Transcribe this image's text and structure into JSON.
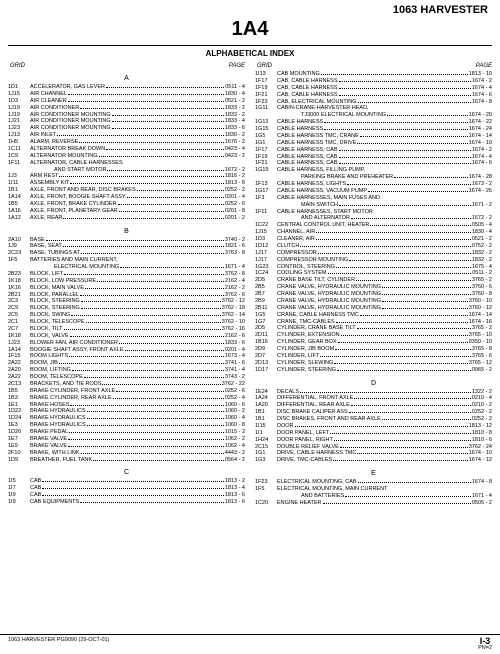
{
  "header": {
    "product": "1063 HARVESTER",
    "section": "1A4",
    "indexTitle": "ALPHABETICAL INDEX"
  },
  "colhead": {
    "grid": "GRID",
    "page": "PAGE"
  },
  "footer": {
    "left": "1063 HARVESTER    PG9090       (29-OCT-01)",
    "rightBig": "I-3",
    "rightSmall": "PN=2"
  },
  "left": [
    {
      "type": "letter",
      "label": "A"
    },
    {
      "type": "row",
      "grid": "1D1",
      "desc": "ACCELERATOR, GAS LEVER",
      "page": "0511 - 4"
    },
    {
      "type": "row",
      "grid": "1J15",
      "desc": "AIR CHANNEL",
      "page": "1830 - 4"
    },
    {
      "type": "row",
      "grid": "1D3",
      "desc": "AIR CLEANER",
      "page": "0521 - 2"
    },
    {
      "type": "row",
      "grid": "1J19",
      "desc": "AIR CONDITIONER",
      "page": "1833 - 2"
    },
    {
      "type": "row",
      "grid": "1J19",
      "desc": "AIR CONDITIONER MOUNTING",
      "page": "1833 - 2"
    },
    {
      "type": "row",
      "grid": "1J21",
      "desc": "AIR CONDITIONER MOUNTING",
      "page": "1833 - 4"
    },
    {
      "type": "row",
      "grid": "1J23",
      "desc": "AIR CONDITIONER MOUNTING",
      "page": "1833 - 6"
    },
    {
      "type": "row",
      "grid": "1J13",
      "desc": "AIR INLET",
      "page": "1830 - 2"
    },
    {
      "type": "row",
      "grid": "1H5",
      "desc": "ALARM, REVERSE",
      "page": "1676 - 2"
    },
    {
      "type": "row",
      "grid": "1C11",
      "desc": "ALTERNATOR BREAK DOWN",
      "page": "0423 - 4"
    },
    {
      "type": "row",
      "grid": "1C9",
      "desc": "ALTERNATOR MOUNTING",
      "page": "0423 - 2"
    },
    {
      "type": "row",
      "grid": "1F11",
      "desc": "ALTERNATOR, CABLE HARNESSES",
      "page": ""
    },
    {
      "type": "cont",
      "desc": "AND START MOTOR",
      "page": "1672 - 2"
    },
    {
      "type": "row",
      "grid": "1J3",
      "desc": "ARM REST",
      "page": "1816 - 2"
    },
    {
      "type": "row",
      "grid": "1I11",
      "desc": "ASSEMBLY KIT",
      "page": "1813 - 8"
    },
    {
      "type": "row",
      "grid": "1B1",
      "desc": "AXLE, FRONT AND REAR, DISC BRAKES",
      "page": "0252 - 2"
    },
    {
      "type": "row",
      "grid": "1A14",
      "desc": "AXLE, FRONT, BOOGIE SHAFT ASSY.",
      "page": "0201 - 4"
    },
    {
      "type": "row",
      "grid": "1B5",
      "desc": "AXLE, FRONT, BRAKE CYLINDER",
      "page": "0252 - 6"
    },
    {
      "type": "row",
      "grid": "1A16",
      "desc": "AXLE, FRONT, PLANETARY GEAR",
      "page": "0201 - 8"
    },
    {
      "type": "row",
      "grid": "1A12",
      "desc": "AXLE, REAR",
      "page": "0201 - 2"
    },
    {
      "type": "letter",
      "label": "B"
    },
    {
      "type": "row",
      "grid": "2A10",
      "desc": "BASE",
      "page": "3740 - 2"
    },
    {
      "type": "row",
      "grid": "1J9",
      "desc": "BASE, SEAT",
      "page": "1821 - 6"
    },
    {
      "type": "row",
      "grid": "2C23",
      "desc": "BASE, TUBINGS AT",
      "page": "3763 - 8"
    },
    {
      "type": "row",
      "grid": "1F5",
      "desc": "BATTERIES AND MAIN CURRENT,",
      "page": ""
    },
    {
      "type": "cont",
      "desc": "ELECTRICAL MOUNTING",
      "page": "1671 - 4"
    },
    {
      "type": "row",
      "grid": "2B23",
      "desc": "BLOCK, LIFT",
      "page": "3762 - 8"
    },
    {
      "type": "row",
      "grid": "1K18",
      "desc": "BLOCK, LOW PRESSURE",
      "page": "2162 - 4"
    },
    {
      "type": "row",
      "grid": "1K16",
      "desc": "BLOCK, MAIN VALVE",
      "page": "2162 - 2"
    },
    {
      "type": "row",
      "grid": "2B21",
      "desc": "BLOCK, PARALLEL",
      "page": "3762 - 6"
    },
    {
      "type": "row",
      "grid": "2C3",
      "desc": "BLOCK, STEERING",
      "page": "3762 - 12"
    },
    {
      "type": "row",
      "grid": "2C9",
      "desc": "BLOCK, STEERING",
      "page": "3762 - 18"
    },
    {
      "type": "row",
      "grid": "2C5",
      "desc": "BLOCK, SWING",
      "page": "3762 - 14"
    },
    {
      "type": "row",
      "grid": "2C1",
      "desc": "BLOCK, TELESCOPE",
      "page": "3762 - 10"
    },
    {
      "type": "row",
      "grid": "2C7",
      "desc": "BLOCK, TILT",
      "page": "3762 - 16"
    },
    {
      "type": "row",
      "grid": "1K18",
      "desc": "BLOCK, VALVE",
      "page": "2162 - 6"
    },
    {
      "type": "row",
      "grid": "1J23",
      "desc": "BLOWER FAN, AIR CONDITIONER",
      "page": "1833 - 6"
    },
    {
      "type": "row",
      "grid": "1A14",
      "desc": "BOOGIE SHAFT ASSY, FRONT AXLE",
      "page": "0201 - 4"
    },
    {
      "type": "row",
      "grid": "1F15",
      "desc": "BOOM LIGHTS",
      "page": "1673 - 4"
    },
    {
      "type": "row",
      "grid": "2A22",
      "desc": "BOOM, JIB",
      "page": "3741 - 6"
    },
    {
      "type": "row",
      "grid": "2A20",
      "desc": "BOOM, LIFTING",
      "page": "3741 - 4"
    },
    {
      "type": "row",
      "grid": "2A22",
      "desc": "BOOM, TELESCOPE",
      "page": "3743 - 2"
    },
    {
      "type": "row",
      "grid": "2C13",
      "desc": "BRACKETS, AND TIE RODS",
      "page": "3762 - 22"
    },
    {
      "type": "row",
      "grid": "1B5",
      "desc": "BRAKE CYLINDER, FRONT AXLE",
      "page": "0252 - 6"
    },
    {
      "type": "row",
      "grid": "1B3",
      "desc": "BRAKE CYLINDER, REAR AXLE",
      "page": "0252 - 4"
    },
    {
      "type": "row",
      "grid": "1E1",
      "desc": "BRAKE HOSES",
      "page": "1060 - 6"
    },
    {
      "type": "row",
      "grid": "1D22",
      "desc": "BRAKE HYDRAULICS",
      "page": "1060 - 2"
    },
    {
      "type": "row",
      "grid": "1D24",
      "desc": "BRAKE HYDRAULICS",
      "page": "1060 - 4"
    },
    {
      "type": "row",
      "grid": "1E3",
      "desc": "BRAKE HYDRAULICS",
      "page": "1060 - 8"
    },
    {
      "type": "row",
      "grid": "1D20",
      "desc": "BRAKE PEDAL",
      "page": "1015 - 2"
    },
    {
      "type": "row",
      "grid": "1E7",
      "desc": "BRAKE VALVE",
      "page": "1062 - 2"
    },
    {
      "type": "row",
      "grid": "1E9",
      "desc": "BRAKE VALVE",
      "page": "1062 - 4"
    },
    {
      "type": "row",
      "grid": "2F10",
      "desc": "BRAKE, WITH LINK",
      "page": "4443 - 2"
    },
    {
      "type": "row",
      "grid": "1D9",
      "desc": "BREATHER, FUEL TANK",
      "page": "0564 - 2"
    },
    {
      "type": "letter",
      "label": "C"
    },
    {
      "type": "row",
      "grid": "1I5",
      "desc": "CAB",
      "page": "1813 - 2"
    },
    {
      "type": "row",
      "grid": "1I7",
      "desc": "CAB",
      "page": "1813 - 4"
    },
    {
      "type": "row",
      "grid": "1I9",
      "desc": "CAB",
      "page": "1813 - 6"
    },
    {
      "type": "row",
      "grid": "1I9",
      "desc": "CAB EQUIPMENTS",
      "page": "1813 - 6"
    }
  ],
  "right": [
    {
      "type": "row",
      "grid": "1I13",
      "desc": "CAB MOUNTING",
      "page": "1813 - 10"
    },
    {
      "type": "row",
      "grid": "1F17",
      "desc": "CAB, CABLE HARNESS",
      "page": "1674 - 2"
    },
    {
      "type": "row",
      "grid": "1F19",
      "desc": "CAB, CABLE HARNESS",
      "page": "1674 - 4"
    },
    {
      "type": "row",
      "grid": "1F21",
      "desc": "CAB, CABLE HARNESS",
      "page": "1674 - 6"
    },
    {
      "type": "row",
      "grid": "1F23",
      "desc": "CAB, ELECTRICAL MOUNTING",
      "page": "1674 - 8"
    },
    {
      "type": "row",
      "grid": "1G11",
      "desc": "CABIN-CRANE-HARVESTER HEAD,",
      "page": ""
    },
    {
      "type": "cont",
      "desc": "TJ3000 ELECTRICAL MOUNTING",
      "page": "1674 - 20"
    },
    {
      "type": "row",
      "grid": "1G13",
      "desc": "CABLE HARNESS",
      "page": "1674 - 22"
    },
    {
      "type": "row",
      "grid": "1G15",
      "desc": "CABLE HARNESS",
      "page": "1674 - 24"
    },
    {
      "type": "row",
      "grid": "1G5",
      "desc": "CABLE HARNESS TMC, CRANE",
      "page": "1674 - 14"
    },
    {
      "type": "row",
      "grid": "1G1",
      "desc": "CABLE HARNESS TMC, DRIVE",
      "page": "1674 - 10"
    },
    {
      "type": "row",
      "grid": "1F17",
      "desc": "CABLE HARNESS, CAB",
      "page": "1674 - 2"
    },
    {
      "type": "row",
      "grid": "1F19",
      "desc": "CABLE HARNESS, CAB",
      "page": "1674 - 4"
    },
    {
      "type": "row",
      "grid": "1F21",
      "desc": "CABLE HARNESS, CAB",
      "page": "1674 - 6"
    },
    {
      "type": "row",
      "grid": "1G19",
      "desc": "CABLE HARNESS, FILLING PUMP,",
      "page": ""
    },
    {
      "type": "cont",
      "desc": "PARKING BRAKE AND PREHEATER",
      "page": "1674 - 28"
    },
    {
      "type": "row",
      "grid": "1F13",
      "desc": "CABLE HARNESS, LIGHTS",
      "page": "1673 - 2"
    },
    {
      "type": "row",
      "grid": "1G17",
      "desc": "CABLE HARNESS, VACUUM PUMP",
      "page": "1674 - 26"
    },
    {
      "type": "row",
      "grid": "1F3",
      "desc": "CABLE HARNESSES, MAIN FUSES AND",
      "page": ""
    },
    {
      "type": "cont",
      "desc": "MAIN SWITCH",
      "page": "1671 - 2"
    },
    {
      "type": "row",
      "grid": "1F11",
      "desc": "CABLE HARNESSES, START MOTOR",
      "page": ""
    },
    {
      "type": "cont",
      "desc": "AND ALTERNATOR",
      "page": "1672 - 2"
    },
    {
      "type": "row",
      "grid": "1C22",
      "desc": "CENTRAL CONTROL UNIT, HEATER",
      "page": "0505 - 4"
    },
    {
      "type": "row",
      "grid": "1J15",
      "desc": "CHANNEL, AIR",
      "page": "1830 - 4"
    },
    {
      "type": "row",
      "grid": "1D3",
      "desc": "CLEANER, AIR",
      "page": "0521 - 2"
    },
    {
      "type": "row",
      "grid": "1D12",
      "desc": "CLUTCH",
      "page": "0752 - 2"
    },
    {
      "type": "row",
      "grid": "1J17",
      "desc": "COMPRESSOR",
      "page": "1832 - 2"
    },
    {
      "type": "row",
      "grid": "1J17",
      "desc": "COMPRESSOR MOUNTING",
      "page": "1832 - 2"
    },
    {
      "type": "row",
      "grid": "1G23",
      "desc": "CONTROL, STEERING",
      "page": "1675 - 4"
    },
    {
      "type": "row",
      "grid": "1C24",
      "desc": "COOLING SYSTEM",
      "page": "0511 - 2"
    },
    {
      "type": "row",
      "grid": "2D5",
      "desc": "CRANE BASE TILT, CYLINDER",
      "page": "3765 - 2"
    },
    {
      "type": "row",
      "grid": "2B5",
      "desc": "CRANE VALVE, HYDRAULIC MOUNTING",
      "page": "3760 - 6"
    },
    {
      "type": "row",
      "grid": "2B7",
      "desc": "CRANE VALVE, HYDRAULIC MOUNTING",
      "page": "3760 - 8"
    },
    {
      "type": "row",
      "grid": "2B9",
      "desc": "CRANE VALVE, HYDRAULIC MOUNTING",
      "page": "3760 - 10"
    },
    {
      "type": "row",
      "grid": "2B11",
      "desc": "CRANE VALVE, HYDRAULIC MOUNTING",
      "page": "3760 - 12"
    },
    {
      "type": "row",
      "grid": "1G5",
      "desc": "CRANE, CABLE HARNESS TMC",
      "page": "1674 - 14"
    },
    {
      "type": "row",
      "grid": "1G7",
      "desc": "CRANE, TMC-CABLES",
      "page": "1674 - 16"
    },
    {
      "type": "row",
      "grid": "2D5",
      "desc": "CYLINDER, CRANE BASE TILT",
      "page": "3765 - 2"
    },
    {
      "type": "row",
      "grid": "2D11",
      "desc": "CYLINDER, EXTENSION",
      "page": "3765 - 10"
    },
    {
      "type": "row",
      "grid": "1B16",
      "desc": "CYLINDER, GEAR BOX",
      "page": "0350 - 10"
    },
    {
      "type": "row",
      "grid": "2D9",
      "desc": "CYLINDER, JIB BOOM",
      "page": "3765 - 8"
    },
    {
      "type": "row",
      "grid": "2D7",
      "desc": "CYLINDER, LIFT",
      "page": "3765 - 6"
    },
    {
      "type": "row",
      "grid": "2D13",
      "desc": "CYLINDER, SLEWING",
      "page": "3765 - 12"
    },
    {
      "type": "row",
      "grid": "1D17",
      "desc": "CYLINDER, STEERING",
      "page": "0965 - 2"
    },
    {
      "type": "letter",
      "label": "D"
    },
    {
      "type": "row",
      "grid": "1E24",
      "desc": "DECALS",
      "page": "1322 - 2"
    },
    {
      "type": "row",
      "grid": "1A24",
      "desc": "DIFFERENTIAL, FRONT AXLE",
      "page": "0210 - 4"
    },
    {
      "type": "row",
      "grid": "1A20",
      "desc": "DIFFERENTIAL, REAR AXLE",
      "page": "0210 - 2"
    },
    {
      "type": "row",
      "grid": "1B1",
      "desc": "DISC BRAKE CALIPER ASS",
      "page": "0252 - 2"
    },
    {
      "type": "row",
      "grid": "1B1",
      "desc": "DISC BRAKES, FRONT AND REAR AXLE",
      "page": "0252 - 2"
    },
    {
      "type": "row",
      "grid": "1I15",
      "desc": "DOOR",
      "page": "1813 - 12"
    },
    {
      "type": "row",
      "grid": "1I1",
      "desc": "DOOR PANEL, LEFT",
      "page": "1810 - 8"
    },
    {
      "type": "row",
      "grid": "1H24",
      "desc": "DOOR PANEL, RIGHT",
      "page": "1810 - 6"
    },
    {
      "type": "row",
      "grid": "2C15",
      "desc": "DOUBLE RELIEF VALVE",
      "page": "3762 - 24"
    },
    {
      "type": "row",
      "grid": "1G1",
      "desc": "DRIVE, CABLE HARNESS TMC",
      "page": "1674 - 10"
    },
    {
      "type": "row",
      "grid": "1G3",
      "desc": "DRIVE, TMC-CABLES",
      "page": "1674 - 12"
    },
    {
      "type": "letter",
      "label": "E"
    },
    {
      "type": "row",
      "grid": "1F23",
      "desc": "ELECTRICAL MOUNTING, CAB",
      "page": "1674 - 8"
    },
    {
      "type": "row",
      "grid": "1F5",
      "desc": "ELECTRICAL MOUNTING, MAIN CURRENT",
      "page": ""
    },
    {
      "type": "cont",
      "desc": "AND BATTERIES",
      "page": "1671 - 4"
    },
    {
      "type": "row",
      "grid": "1C20",
      "desc": "ENGINE HEATER",
      "page": "0505 - 2"
    }
  ]
}
